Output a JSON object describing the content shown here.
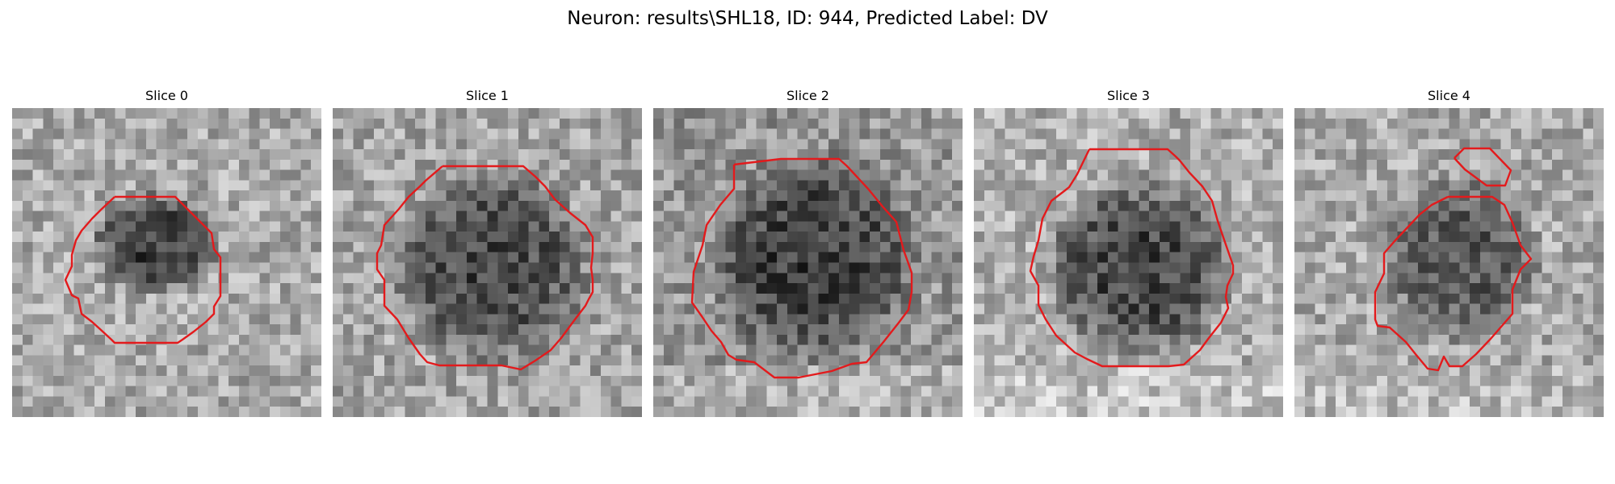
{
  "figure": {
    "title": "Neuron: results\\SHL18, ID: 944, Predicted Label: DV",
    "contour_color": "#e31a1c",
    "colormap": "gray"
  },
  "panels": [
    {
      "title": "Slice 0"
    },
    {
      "title": "Slice 1"
    },
    {
      "title": "Slice 2"
    },
    {
      "title": "Slice 3"
    },
    {
      "title": "Slice 4"
    }
  ]
}
